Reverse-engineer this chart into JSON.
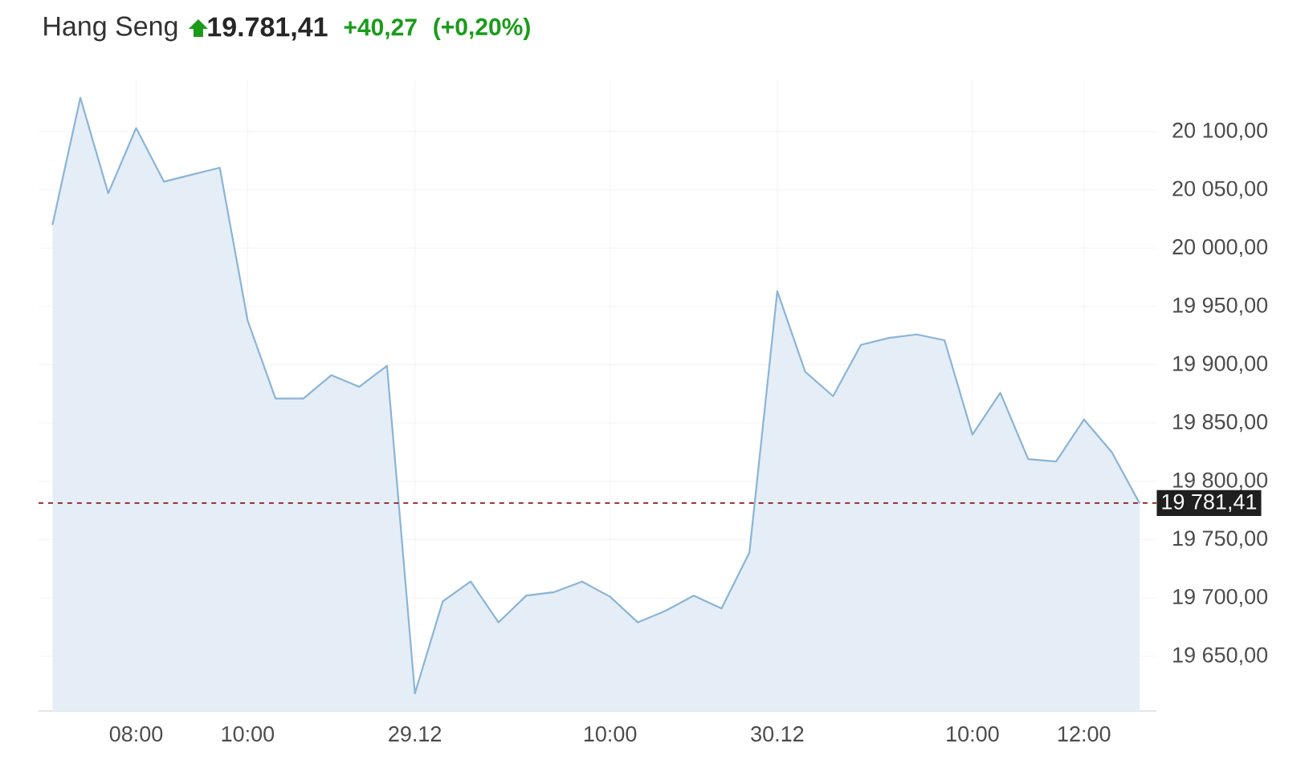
{
  "chart_data": {
    "type": "area",
    "title": "Hang Seng",
    "annotations": [
      "19.781,41",
      "+40,27",
      "(+0,20%)"
    ],
    "categories": [
      null,
      null,
      null,
      "08:00",
      null,
      null,
      null,
      "10:00",
      null,
      null,
      null,
      null,
      null,
      "29.12",
      null,
      null,
      null,
      null,
      null,
      null,
      "10:00",
      null,
      null,
      null,
      null,
      null,
      "30.12",
      null,
      null,
      null,
      null,
      null,
      null,
      "10:00",
      null,
      null,
      null,
      "12:00",
      null,
      null
    ],
    "series": [
      {
        "color": "#8ab4d8",
        "values": [
          20020,
          20129,
          20047,
          20103,
          20057,
          20063,
          20069,
          19938,
          19871,
          19871,
          19891,
          19881,
          19899,
          19618,
          19697,
          19714,
          19679,
          19702,
          19705,
          19714,
          19701,
          19679,
          19689,
          19702,
          19691,
          19739,
          19963,
          19894,
          19873,
          19917,
          19923,
          19926,
          19921,
          19840,
          19876,
          19819,
          19817,
          19853,
          19825,
          19781
        ]
      }
    ],
    "ylim": [
      19603,
      20144
    ],
    "yticks": [
      {
        "value": 19650,
        "label": "19 650,00"
      },
      {
        "value": 19700,
        "label": "19 700,00"
      },
      {
        "value": 19750,
        "label": "19 750,00"
      },
      {
        "value": 19800,
        "label": "19 800,00"
      },
      {
        "value": 19850,
        "label": "19 850,00"
      },
      {
        "value": 19900,
        "label": "19 900,00"
      },
      {
        "value": 19950,
        "label": "19 950,00"
      },
      {
        "value": 20000,
        "label": "20 000,00"
      },
      {
        "value": 20050,
        "label": "20 050,00"
      },
      {
        "value": 20100,
        "label": "20 100,00"
      }
    ],
    "ref_lines": [
      {
        "axis": "y",
        "value": 19781.41,
        "label": "19 781,41",
        "color": "#8b1a1a",
        "line_style": "dashed"
      }
    ],
    "grid": true,
    "marker": "none",
    "line_style": "solid"
  }
}
